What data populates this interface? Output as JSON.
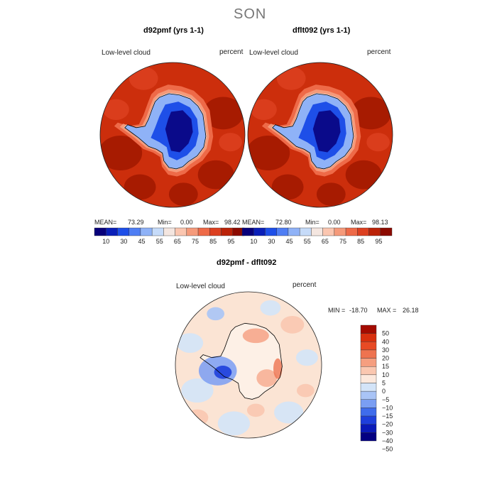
{
  "season": "SON",
  "colors": {
    "top_scale": [
      "#08007a",
      "#0a1fb8",
      "#1e4fe8",
      "#4f7ef4",
      "#8fb2f7",
      "#c6dbf9",
      "#f4e6e0",
      "#fbc6b0",
      "#f59a7a",
      "#ee6a48",
      "#dc4020",
      "#bb2208",
      "#8c0a00"
    ],
    "diff_scale": [
      "#030082",
      "#0a1ab8",
      "#1e3fdc",
      "#3f6cec",
      "#7a9ef3",
      "#a9c4f6",
      "#d3e4f8",
      "#fce8dc",
      "#fac7b0",
      "#f59e7f",
      "#ee7350",
      "#e84a24",
      "#d8300e",
      "#a40b00"
    ],
    "ocean_high": "#cc2e0c",
    "ocean_max": "#a01800",
    "land_min": "#0a0a8a",
    "diff_bg": "#fbe4d4"
  },
  "panels": [
    {
      "title": "d92pmf (yrs 1-1)",
      "left_label": "Low-level cloud",
      "right_label": "percent",
      "mean": "73.29",
      "min": "0.00",
      "max": "98.42",
      "mean_label": "MEAN=",
      "min_label": "Min=",
      "max_label": "Max="
    },
    {
      "title": "dflt092 (yrs 1-1)",
      "left_label": "Low-level cloud",
      "right_label": "percent",
      "mean": "72.80",
      "min": "0.00",
      "max": "98.13",
      "mean_label": "MEAN=",
      "min_label": "Min=",
      "max_label": "Max="
    }
  ],
  "top_colorbar_ticks": [
    "10",
    "30",
    "45",
    "55",
    "65",
    "75",
    "85",
    "95"
  ],
  "diff": {
    "title": "d92pmf - dflt092",
    "left_label": "Low-level cloud",
    "right_label": "percent",
    "min_label": "MIN =",
    "min": "-18.70",
    "max_label": "MAX =",
    "max": "26.18",
    "ticks": [
      "50",
      "40",
      "30",
      "20",
      "15",
      "10",
      "5",
      "0",
      "−5",
      "−10",
      "−15",
      "−20",
      "−30",
      "−40",
      "−50"
    ]
  },
  "chart_data": [
    {
      "type": "heatmap",
      "title": "d92pmf (yrs 1-1)",
      "variable": "Low-level cloud",
      "units": "percent",
      "projection": "south polar stereographic",
      "mean": 73.29,
      "min": 0.0,
      "max": 98.42,
      "colorbar_ticks": [
        10,
        30,
        45,
        55,
        65,
        75,
        85,
        95
      ]
    },
    {
      "type": "heatmap",
      "title": "dflt092 (yrs 1-1)",
      "variable": "Low-level cloud",
      "units": "percent",
      "projection": "south polar stereographic",
      "mean": 72.8,
      "min": 0.0,
      "max": 98.13,
      "colorbar_ticks": [
        10,
        30,
        45,
        55,
        65,
        75,
        85,
        95
      ]
    },
    {
      "type": "heatmap",
      "title": "d92pmf - dflt092",
      "variable": "Low-level cloud",
      "units": "percent",
      "projection": "south polar stereographic",
      "min": -18.7,
      "max": 26.18,
      "colorbar_ticks": [
        50,
        40,
        30,
        20,
        15,
        10,
        5,
        0,
        -5,
        -10,
        -15,
        -20,
        -30,
        -40,
        -50
      ]
    }
  ]
}
